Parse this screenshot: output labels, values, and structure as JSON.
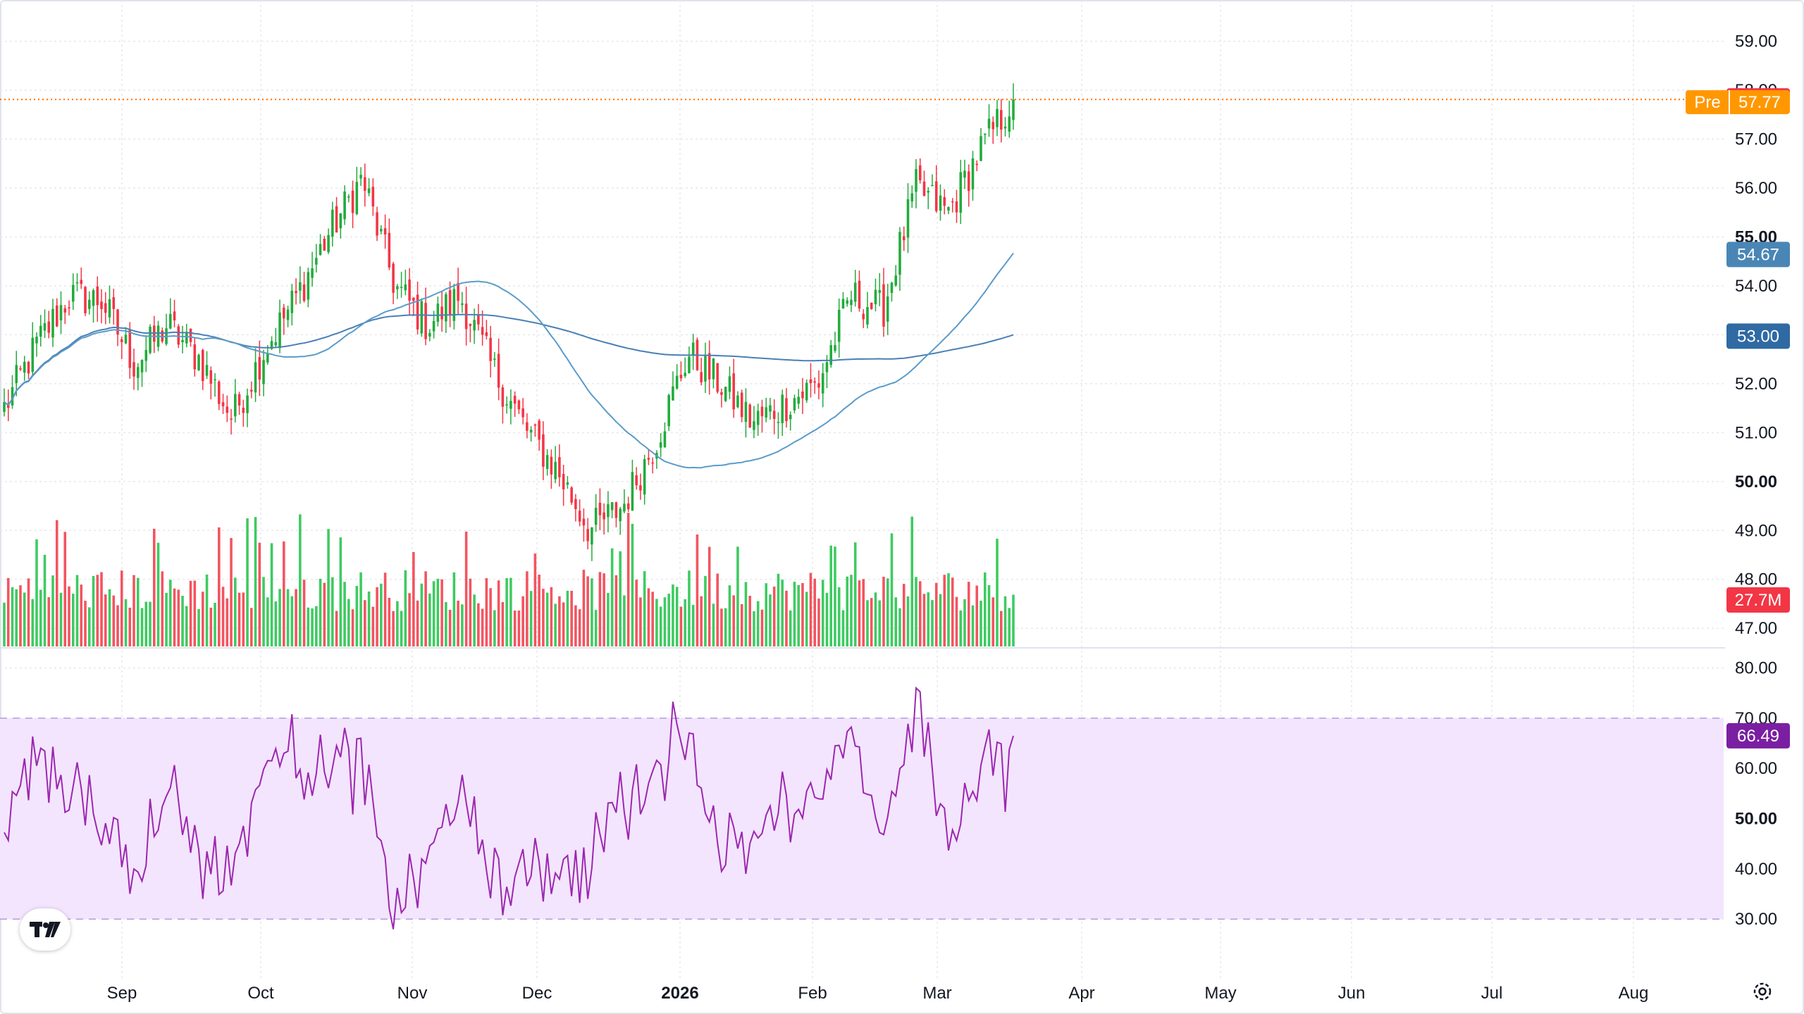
{
  "chart_data": {
    "type": "candlestick",
    "colors": {
      "up": "#22ab3c",
      "down": "#f23645",
      "ma_short": "#5b9bc9",
      "ma_long": "#4a80b5",
      "last_price": "#f23645",
      "pre_market": "#ff9800",
      "ma_short_badge": "#4a86b5",
      "ma_long_badge": "#2f6aa3",
      "rsi_line": "#9c27b0",
      "rsi_badge": "#7b1fa2",
      "rsi_band": "#f3e5fd",
      "price_line": "#ff6d00"
    },
    "x_ticks": [
      {
        "label": "Sep",
        "bold": false
      },
      {
        "label": "Oct",
        "bold": false
      },
      {
        "label": "Nov",
        "bold": false
      },
      {
        "label": "Dec",
        "bold": false
      },
      {
        "label": "2026",
        "bold": true
      },
      {
        "label": "Feb",
        "bold": false
      },
      {
        "label": "Mar",
        "bold": false
      },
      {
        "label": "Apr",
        "bold": false
      },
      {
        "label": "May",
        "bold": false
      },
      {
        "label": "Jun",
        "bold": false
      },
      {
        "label": "Jul",
        "bold": false
      },
      {
        "label": "Aug",
        "bold": false
      }
    ],
    "price_axis": {
      "ticks": [
        "59.00",
        "58.00",
        "57.00",
        "56.00",
        "55.00",
        "54.00",
        "53.00",
        "52.00",
        "51.00",
        "50.00",
        "49.00",
        "48.00",
        "47.00"
      ],
      "bold_ticks": [
        "55.00",
        "50.00"
      ],
      "range": [
        46.6,
        59.7
      ]
    },
    "rsi_axis": {
      "ticks": [
        "80.00",
        "70.00",
        "60.00",
        "50.00",
        "40.00",
        "30.00"
      ],
      "bold_ticks": [
        "50.00"
      ],
      "range": [
        24,
        84
      ],
      "band": [
        30,
        70
      ]
    },
    "badges": {
      "last_price": "57.81",
      "pre_label": "Pre",
      "pre_price": "57.77",
      "ma_short": "54.67",
      "ma_long": "53.00",
      "volume": "27.7M",
      "rsi": "66.49"
    },
    "last_price_value": 57.81,
    "candles": {
      "count": 250,
      "key_closes": [
        51.5,
        52.8,
        53.8,
        53.7,
        52.4,
        53.2,
        52.5,
        51.3,
        52.7,
        53.8,
        55.1,
        56.2,
        54.0,
        53.2,
        53.8,
        52.3,
        51.1,
        50.2,
        49.0,
        49.5,
        50.8,
        52.6,
        52.0,
        51.2,
        51.6,
        52.0,
        53.8,
        53.5,
        56.0,
        55.5,
        56.8,
        57.81
      ],
      "ma_short_end": 54.67,
      "ma_long_end": 53.0
    },
    "rsi_end": 66.49
  },
  "ui": {
    "logo_text": "TV",
    "settings_icon": "gear-icon"
  }
}
